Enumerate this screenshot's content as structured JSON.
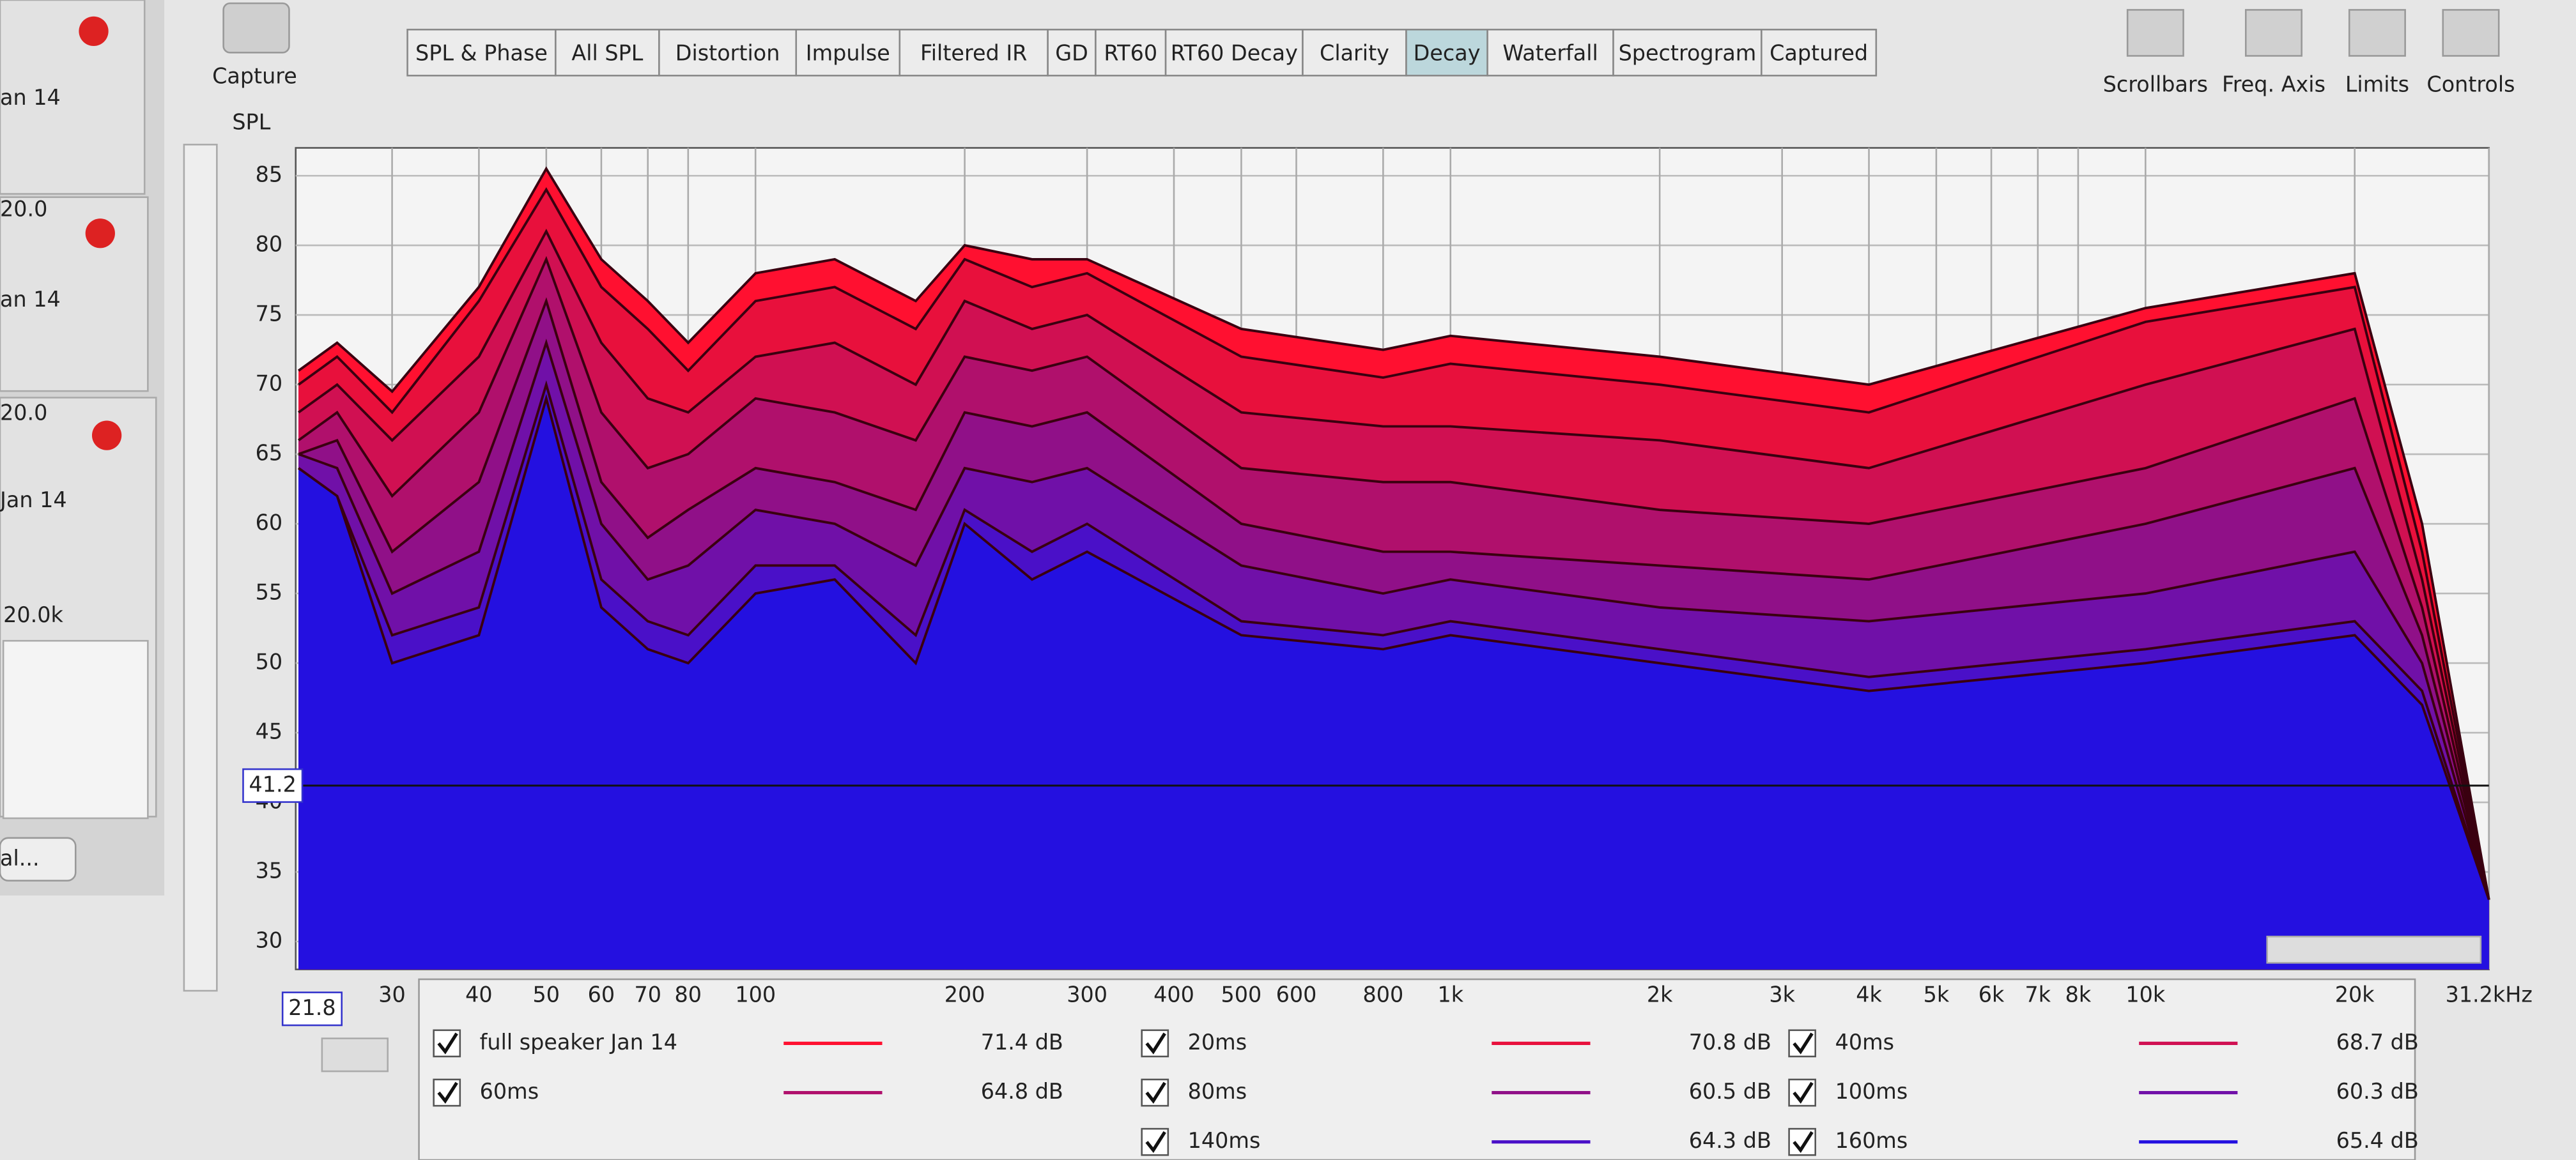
{
  "toolbar": {
    "capture": "Capture",
    "tabs": [
      "SPL & Phase",
      "All SPL",
      "Distortion",
      "Impulse",
      "Filtered IR",
      "GD",
      "RT60",
      "RT60 Decay",
      "Clarity",
      "Decay",
      "Waterfall",
      "Spectrogram",
      "Captured"
    ],
    "active_tab": "Decay",
    "buttons": [
      "Scrollbars",
      "Freq. Axis",
      "Limits",
      "Controls"
    ]
  },
  "sidebar": {
    "texts": [
      "an 14",
      "20.0",
      "an 14",
      "20.0",
      "Jan 14",
      "20.0k",
      "al..."
    ]
  },
  "chart_data": {
    "type": "area",
    "y_label": "SPL",
    "xscale": "log",
    "grid": true,
    "x": [
      22,
      25,
      30,
      40,
      50,
      60,
      70,
      80,
      100,
      130,
      170,
      200,
      250,
      300,
      500,
      800,
      1000,
      2000,
      4000,
      10000,
      20000,
      25000,
      31200
    ],
    "series": [
      {
        "name": "full speaker Jan 14",
        "color": "#ff1030",
        "cursor_label": "71.4 dB",
        "values": [
          71,
          73,
          69.5,
          77,
          85.5,
          79,
          76,
          73,
          78,
          79,
          76,
          80,
          79,
          79,
          74,
          72.5,
          73.5,
          72,
          70,
          75.5,
          78,
          60,
          33
        ]
      },
      {
        "name": "20ms",
        "color": "#e8103c",
        "cursor_label": "70.8 dB",
        "values": [
          70,
          72,
          68,
          76,
          84,
          77,
          74,
          71,
          76,
          77,
          74,
          79,
          77,
          78,
          72,
          70.5,
          71.5,
          70,
          68,
          74.5,
          77,
          58,
          33
        ]
      },
      {
        "name": "40ms",
        "color": "#d01052",
        "cursor_label": "68.7 dB",
        "values": [
          68,
          70,
          66,
          72,
          81,
          73,
          69,
          68,
          72,
          73,
          70,
          76,
          74,
          75,
          68,
          67,
          67,
          66,
          64,
          70,
          74,
          56,
          33
        ]
      },
      {
        "name": "60ms",
        "color": "#b0106c",
        "cursor_label": "64.8 dB",
        "values": [
          66,
          68,
          62,
          68,
          79,
          68,
          64,
          65,
          69,
          68,
          66,
          72,
          71,
          72,
          64,
          63,
          63,
          61,
          60,
          64,
          69,
          54,
          33
        ]
      },
      {
        "name": "80ms",
        "color": "#901088",
        "cursor_label": "60.5 dB",
        "values": [
          65,
          66,
          58,
          63,
          76,
          63,
          59,
          61,
          64,
          63,
          61,
          68,
          67,
          68,
          60,
          58,
          58,
          57,
          56,
          60,
          64,
          52,
          33
        ]
      },
      {
        "name": "100ms",
        "color": "#7010a8",
        "cursor_label": "60.3 dB",
        "values": [
          65,
          64,
          55,
          58,
          73,
          60,
          56,
          57,
          61,
          60,
          57,
          64,
          63,
          64,
          57,
          55,
          56,
          54,
          53,
          55,
          58,
          50,
          33
        ]
      },
      {
        "name": "140ms",
        "color": "#4a10c8",
        "cursor_label": "64.3 dB",
        "values": [
          64,
          62,
          52,
          54,
          70,
          56,
          53,
          52,
          57,
          57,
          52,
          61,
          58,
          60,
          53,
          52,
          53,
          51,
          49,
          51,
          53,
          48,
          33
        ]
      },
      {
        "name": "160ms",
        "color": "#2410e0",
        "cursor_label": "65.4 dB",
        "values": [
          64,
          62,
          50,
          52,
          69,
          54,
          51,
          50,
          55,
          56,
          50,
          60,
          56,
          58,
          52,
          51,
          52,
          50,
          48,
          50,
          52,
          47,
          33
        ]
      }
    ],
    "xlim": [
      21.8,
      31200
    ],
    "ylim": [
      28,
      87
    ],
    "yticks": [
      30,
      35,
      40,
      45,
      50,
      55,
      60,
      65,
      70,
      75,
      80,
      85
    ],
    "xticks": [
      30,
      40,
      50,
      60,
      70,
      80,
      100,
      200,
      300,
      400,
      500,
      600,
      800,
      {
        "value": 1000,
        "label": "1k"
      },
      {
        "value": 2000,
        "label": "2k"
      },
      {
        "value": 3000,
        "label": "3k"
      },
      {
        "value": 4000,
        "label": "4k"
      },
      {
        "value": 5000,
        "label": "5k"
      },
      {
        "value": 6000,
        "label": "6k"
      },
      {
        "value": 7000,
        "label": "7k"
      },
      {
        "value": 8000,
        "label": "8k"
      },
      {
        "value": 10000,
        "label": "10k"
      },
      {
        "value": 20000,
        "label": "20k"
      },
      {
        "value": 31200,
        "label": "31.2kHz"
      }
    ],
    "cursor": {
      "x": 21.8,
      "y": 41.2
    }
  }
}
